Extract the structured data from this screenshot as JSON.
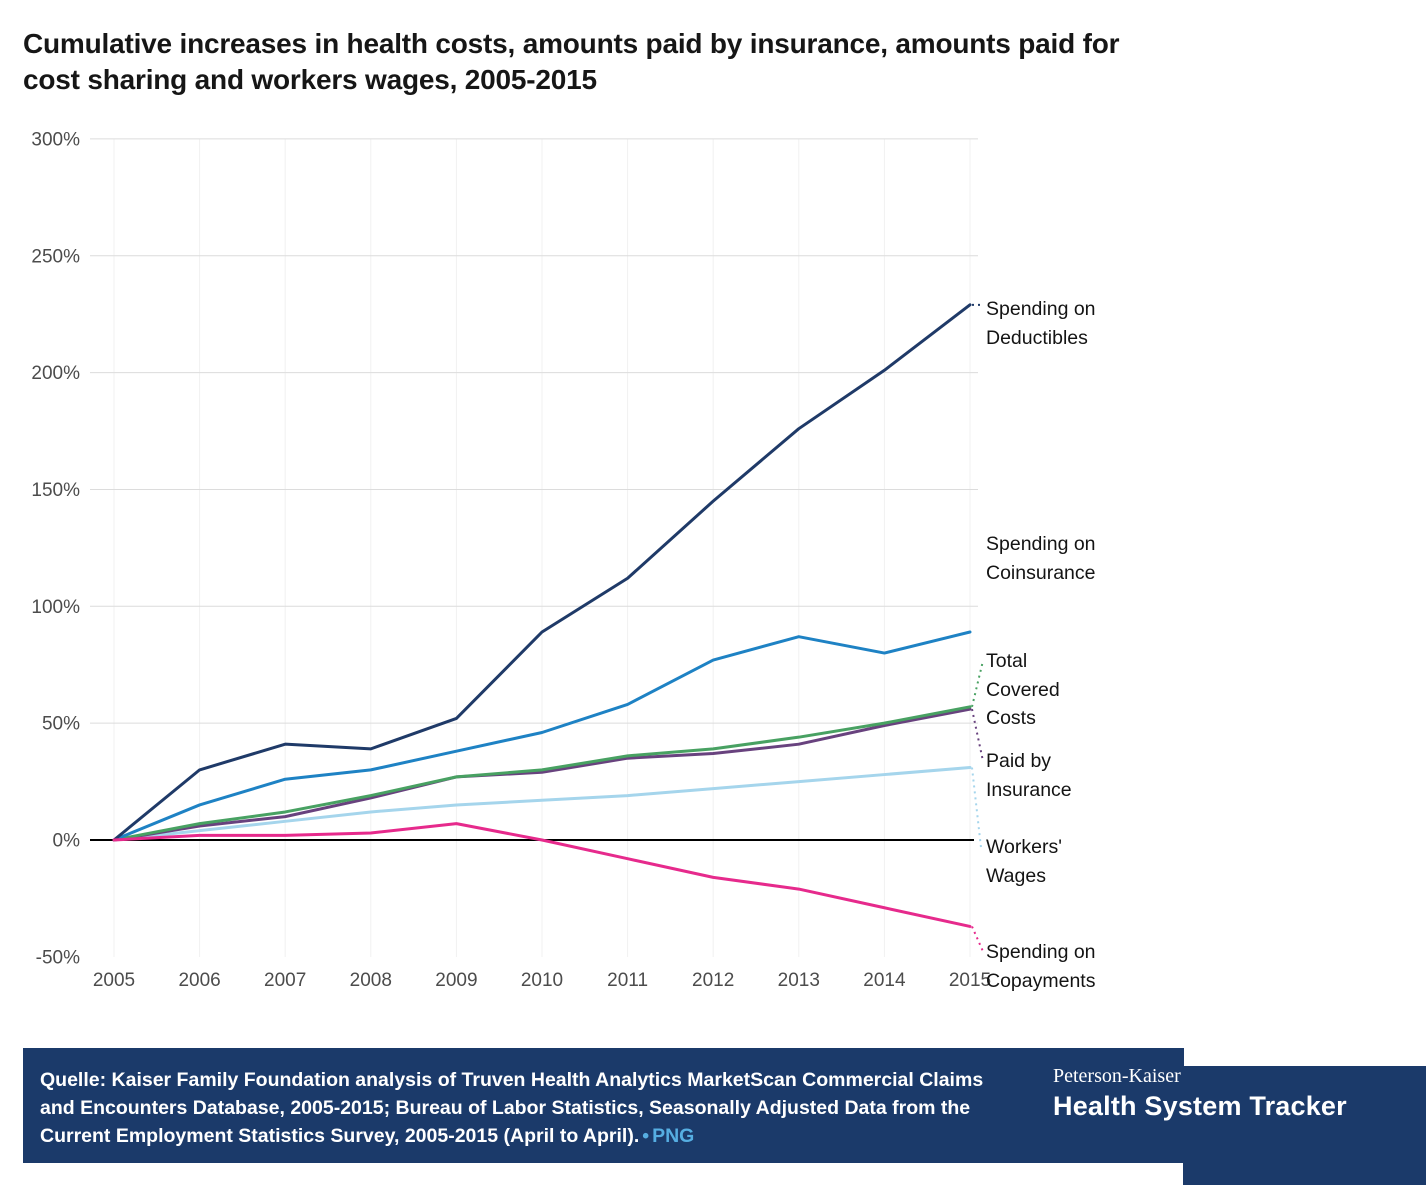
{
  "title": "Cumulative increases in health costs, amounts paid by insurance, amounts paid for cost sharing and workers wages, 2005-2015",
  "chart_data": {
    "type": "line",
    "x": [
      2005,
      2006,
      2007,
      2008,
      2009,
      2010,
      2011,
      2012,
      2013,
      2014,
      2015
    ],
    "xlabel": "",
    "ylabel": "",
    "ylim": [
      -50,
      300
    ],
    "y_ticks": [
      "300%",
      "250%",
      "200%",
      "150%",
      "100%",
      "50%",
      "0%",
      "-50%"
    ],
    "y_tick_values": [
      300,
      250,
      200,
      150,
      100,
      50,
      0,
      -50
    ],
    "grid": true,
    "legend_position": "right",
    "series": [
      {
        "id": "spending-on-deductibles",
        "name": "Spending on Deductibles",
        "color": "#1f3a68",
        "values": [
          0,
          30,
          41,
          39,
          52,
          89,
          112,
          145,
          176,
          201,
          229
        ]
      },
      {
        "id": "spending-on-coinsurance",
        "name": "Spending on Coinsurance",
        "color": "#1e82c4",
        "values": [
          0,
          15,
          26,
          30,
          38,
          46,
          58,
          77,
          87,
          80,
          89
        ]
      },
      {
        "id": "total-covered-costs",
        "name": "Total Covered Costs",
        "color": "#48a162",
        "values": [
          0,
          7,
          12,
          19,
          27,
          30,
          36,
          39,
          44,
          50,
          57
        ]
      },
      {
        "id": "paid-by-insurance",
        "name": "Paid by Insurance",
        "color": "#68427e",
        "values": [
          0,
          6,
          10,
          18,
          27,
          29,
          35,
          37,
          41,
          49,
          56
        ]
      },
      {
        "id": "workers-wages",
        "name": "Workers' Wages",
        "color": "#a5d5ec",
        "values": [
          0,
          4,
          8,
          12,
          15,
          17,
          19,
          22,
          25,
          28,
          31
        ]
      },
      {
        "id": "spending-on-copayments",
        "name": "Spending on Copayments",
        "color": "#e62a8c",
        "values": [
          0,
          2,
          2,
          3,
          7,
          0,
          -8,
          -16,
          -21,
          -29,
          -37
        ]
      }
    ]
  },
  "footer": {
    "source_text": "Quelle: Kaiser Family Foundation analysis of Truven Health Analytics MarketScan Commercial Claims and Encounters Database, 2005-2015; Bureau of Labor Statistics, Seasonally Adjusted Data from the Current Employment Statistics Survey, 2005-2015 (April to April).",
    "bullet": "•",
    "png_label": "PNG",
    "brand_top": "Peterson-Kaiser",
    "brand_bottom": "Health System Tracker"
  },
  "colors": {
    "banner": "#1b3a6a",
    "link": "#56aee2",
    "zero_line": "#000000",
    "gridline": "#dcdcdc",
    "title_text": "#161616"
  }
}
